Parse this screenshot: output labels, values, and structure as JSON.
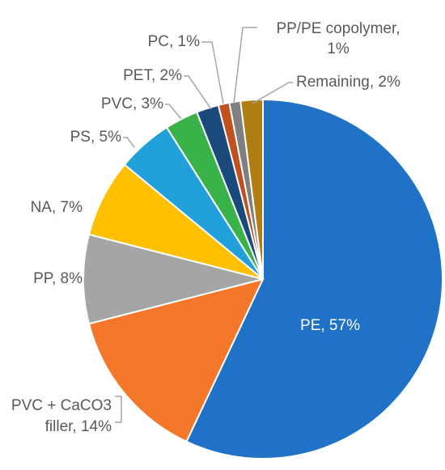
{
  "chart_data": {
    "type": "pie",
    "title": "",
    "start_angle_deg": 0,
    "direction": "clockwise",
    "legend": "none",
    "slices": [
      {
        "label": "PE",
        "value": 57,
        "display": "PE, 57%",
        "color": "#1f72c6"
      },
      {
        "label": "PVC + CaCO3 filler",
        "value": 14,
        "display_lines": [
          "PVC + CaCO3",
          "filler, 14%"
        ],
        "color": "#f5782a"
      },
      {
        "label": "PP",
        "value": 8,
        "display": "PP, 8%",
        "color": "#a5a5a5"
      },
      {
        "label": "NA",
        "value": 7,
        "display": "NA, 7%",
        "color": "#ffc000"
      },
      {
        "label": "PS",
        "value": 5,
        "display": "PS, 5%",
        "color": "#22a0da"
      },
      {
        "label": "PVC",
        "value": 3,
        "display": "PVC, 3%",
        "color": "#3ab24a"
      },
      {
        "label": "PET",
        "value": 2,
        "display": "PET, 2%",
        "color": "#1a4a7c"
      },
      {
        "label": "PC",
        "value": 1,
        "display": "PC, 1%",
        "color": "#c0501d"
      },
      {
        "label": "PP/PE copolymer",
        "value": 1,
        "display_lines": [
          "PP/PE copolymer,",
          "1%"
        ],
        "color": "#7f7f7f"
      },
      {
        "label": "Remaining",
        "value": 2,
        "display": "Remaining, 2%",
        "color": "#b07d12"
      }
    ]
  }
}
